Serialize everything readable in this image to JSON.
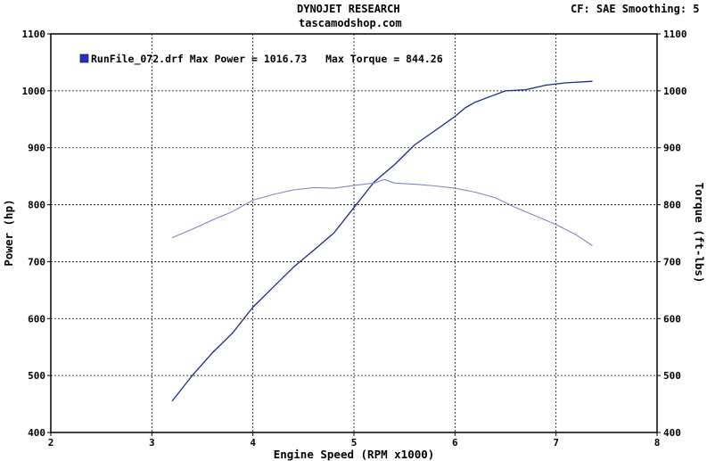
{
  "header": {
    "title": "DYNOJET RESEARCH",
    "subtitle": "tascamodshop.com",
    "info": "CF: SAE  Smoothing: 5"
  },
  "colors": {
    "power": "#1a2a8c",
    "torque": "#7b88cc",
    "grid": "#000000",
    "legend_swatch": "#2233cc"
  },
  "legend": {
    "entry": "RunFile_072.drf Max Power = 1016.73   Max Torque = 844.26"
  },
  "chart_data": {
    "type": "line",
    "title": "DYNOJET RESEARCH",
    "subtitle": "tascamodshop.com",
    "xlabel": "Engine Speed (RPM x1000)",
    "ylabel": "Power (hp)",
    "y2label": "Torque (ft-lbs)",
    "xlim": [
      2,
      8
    ],
    "ylim": [
      400,
      1100
    ],
    "y2lim": [
      400,
      1100
    ],
    "xticks": [
      "2",
      "3",
      "4",
      "5",
      "6",
      "7",
      "8"
    ],
    "yticks": [
      "400",
      "500",
      "600",
      "700",
      "800",
      "900",
      "1000",
      "1100"
    ],
    "y2ticks": [
      "400",
      "500",
      "600",
      "700",
      "800",
      "900",
      "1000",
      "1100"
    ],
    "grid": true,
    "legend_position": "top-left",
    "series": [
      {
        "axis": "left",
        "x": [
          3.2,
          3.4,
          3.6,
          3.8,
          4.0,
          4.2,
          4.4,
          4.6,
          4.8,
          5.0,
          5.2,
          5.4,
          5.6,
          5.8,
          6.0,
          6.1,
          6.2,
          6.35,
          6.5,
          6.7,
          6.9,
          7.1,
          7.36
        ],
        "values": [
          455,
          500,
          540,
          575,
          620,
          655,
          690,
          720,
          750,
          795,
          840,
          870,
          905,
          930,
          955,
          970,
          980,
          990,
          1000,
          1002,
          1010,
          1014,
          1016.73
        ]
      },
      {
        "axis": "right",
        "x": [
          3.2,
          3.4,
          3.6,
          3.8,
          4.0,
          4.2,
          4.4,
          4.6,
          4.8,
          5.0,
          5.2,
          5.3,
          5.4,
          5.6,
          5.8,
          6.0,
          6.2,
          6.4,
          6.6,
          6.8,
          7.0,
          7.2,
          7.36
        ],
        "values": [
          742,
          757,
          773,
          788,
          808,
          818,
          826,
          830,
          829,
          834,
          838,
          844.26,
          838,
          836,
          833,
          829,
          822,
          812,
          795,
          780,
          765,
          747,
          728
        ]
      }
    ]
  }
}
